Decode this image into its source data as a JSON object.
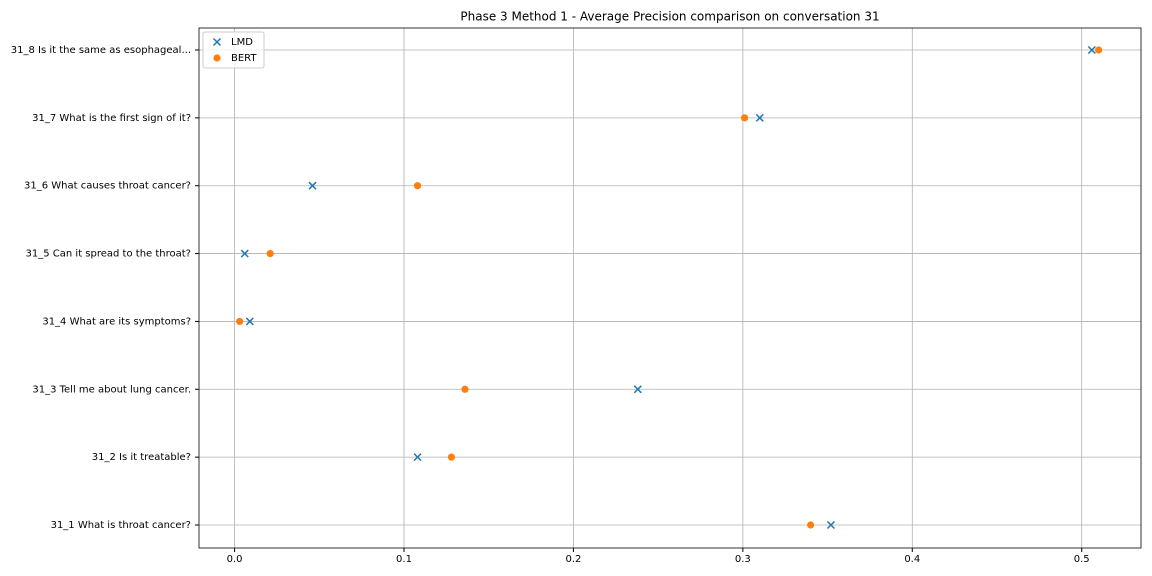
{
  "chart_data": {
    "type": "scatter",
    "title": "Phase 3 Method 1 - Average Precision comparison on conversation 31",
    "categories": [
      "31_1 What is throat cancer?",
      "31_2 Is it treatable?",
      "31_3 Tell me about lung cancer.",
      "31_4 What are its symptoms?",
      "31_5 Can it spread to the throat?",
      "31_6 What causes throat cancer?",
      "31_7 What is the first sign of it?",
      "31_8 Is it the same as esophageal..."
    ],
    "series": [
      {
        "name": "LMD",
        "color": "#1f77b4",
        "marker": "x",
        "values": [
          0.352,
          0.108,
          0.238,
          0.009,
          0.006,
          0.046,
          0.31,
          0.506
        ]
      },
      {
        "name": "BERT",
        "color": "#ff7f0e",
        "marker": "o",
        "values": [
          0.34,
          0.128,
          0.136,
          0.003,
          0.021,
          0.108,
          0.301,
          0.51
        ]
      }
    ],
    "xlim": [
      -0.021,
      0.535
    ],
    "xticks": [
      {
        "value": 0,
        "label": "0.0"
      },
      0.1,
      0.2,
      0.3,
      0.4,
      0.5
    ],
    "grid": true,
    "legend": "upper left"
  }
}
